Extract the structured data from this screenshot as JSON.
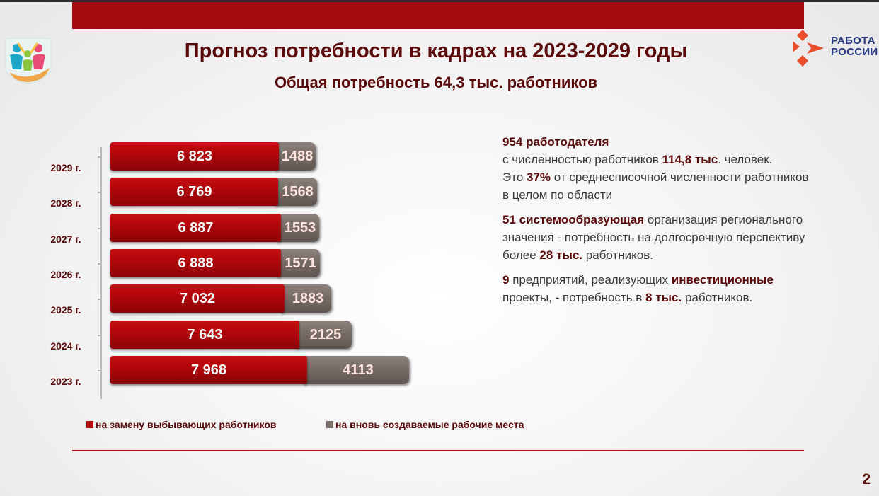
{
  "header": {
    "title": "Прогноз потребности в кадрах на 2023-2029 годы",
    "subtitle": "Общая потребность 64,3 тыс. работников",
    "brand_line1": "РАБОТА",
    "brand_line2": "РОССИИ",
    "accent_color": "#a30c10",
    "brand_color": "#283a85"
  },
  "chart_data": {
    "type": "bar",
    "orientation": "horizontal",
    "stacked": true,
    "categories": [
      "2029 г.",
      "2028 г.",
      "2027 г.",
      "2026 г.",
      "2025 г.",
      "2024 г.",
      "2023 г."
    ],
    "series": [
      {
        "name": "на замену выбывающих работников",
        "color": "#b8060b",
        "values": [
          6823,
          6769,
          6887,
          6888,
          7032,
          7643,
          7968
        ],
        "labels": [
          "6 823",
          "6 769",
          "6 887",
          "6 888",
          "7 032",
          "7 643",
          "7 968"
        ]
      },
      {
        "name": "на вновь создаваемые рабочие места",
        "color": "#7a6e69",
        "values": [
          1488,
          1568,
          1553,
          1571,
          1883,
          2125,
          4113
        ],
        "labels": [
          "1488",
          "1568",
          "1553",
          "1571",
          "1883",
          "2125",
          "4113"
        ]
      }
    ],
    "legend_position": "bottom-left",
    "grid": false
  },
  "info": {
    "p1_l1_b": "954 работодателя",
    "p1_l2_a": "с численностью работников ",
    "p1_l2_b": "114,8 тыс",
    "p1_l2_c": ". человек.",
    "p1_l3_a": "Это ",
    "p1_l3_b": "37%",
    "p1_l3_c": " от среднесписочной численности работников",
    "p1_l4": "в целом по области",
    "p2_l1_b": "51 системообразующая",
    "p2_l1_c": " организация регионального",
    "p2_l2": "значения - потребность на долгосрочную перспективу",
    "p2_l3_a": "более ",
    "p2_l3_b": "28 тыс.",
    "p2_l3_c": " работников.",
    "p3_l1_b": "9",
    "p3_l1_c": " предприятий, реализующих ",
    "p3_l1_d": "инвестиционные",
    "p3_l2_a": "проекты, - потребность в ",
    "p3_l2_b": "8 тыс.",
    "p3_l2_c": " работников."
  },
  "footer": {
    "page_number": "2"
  }
}
